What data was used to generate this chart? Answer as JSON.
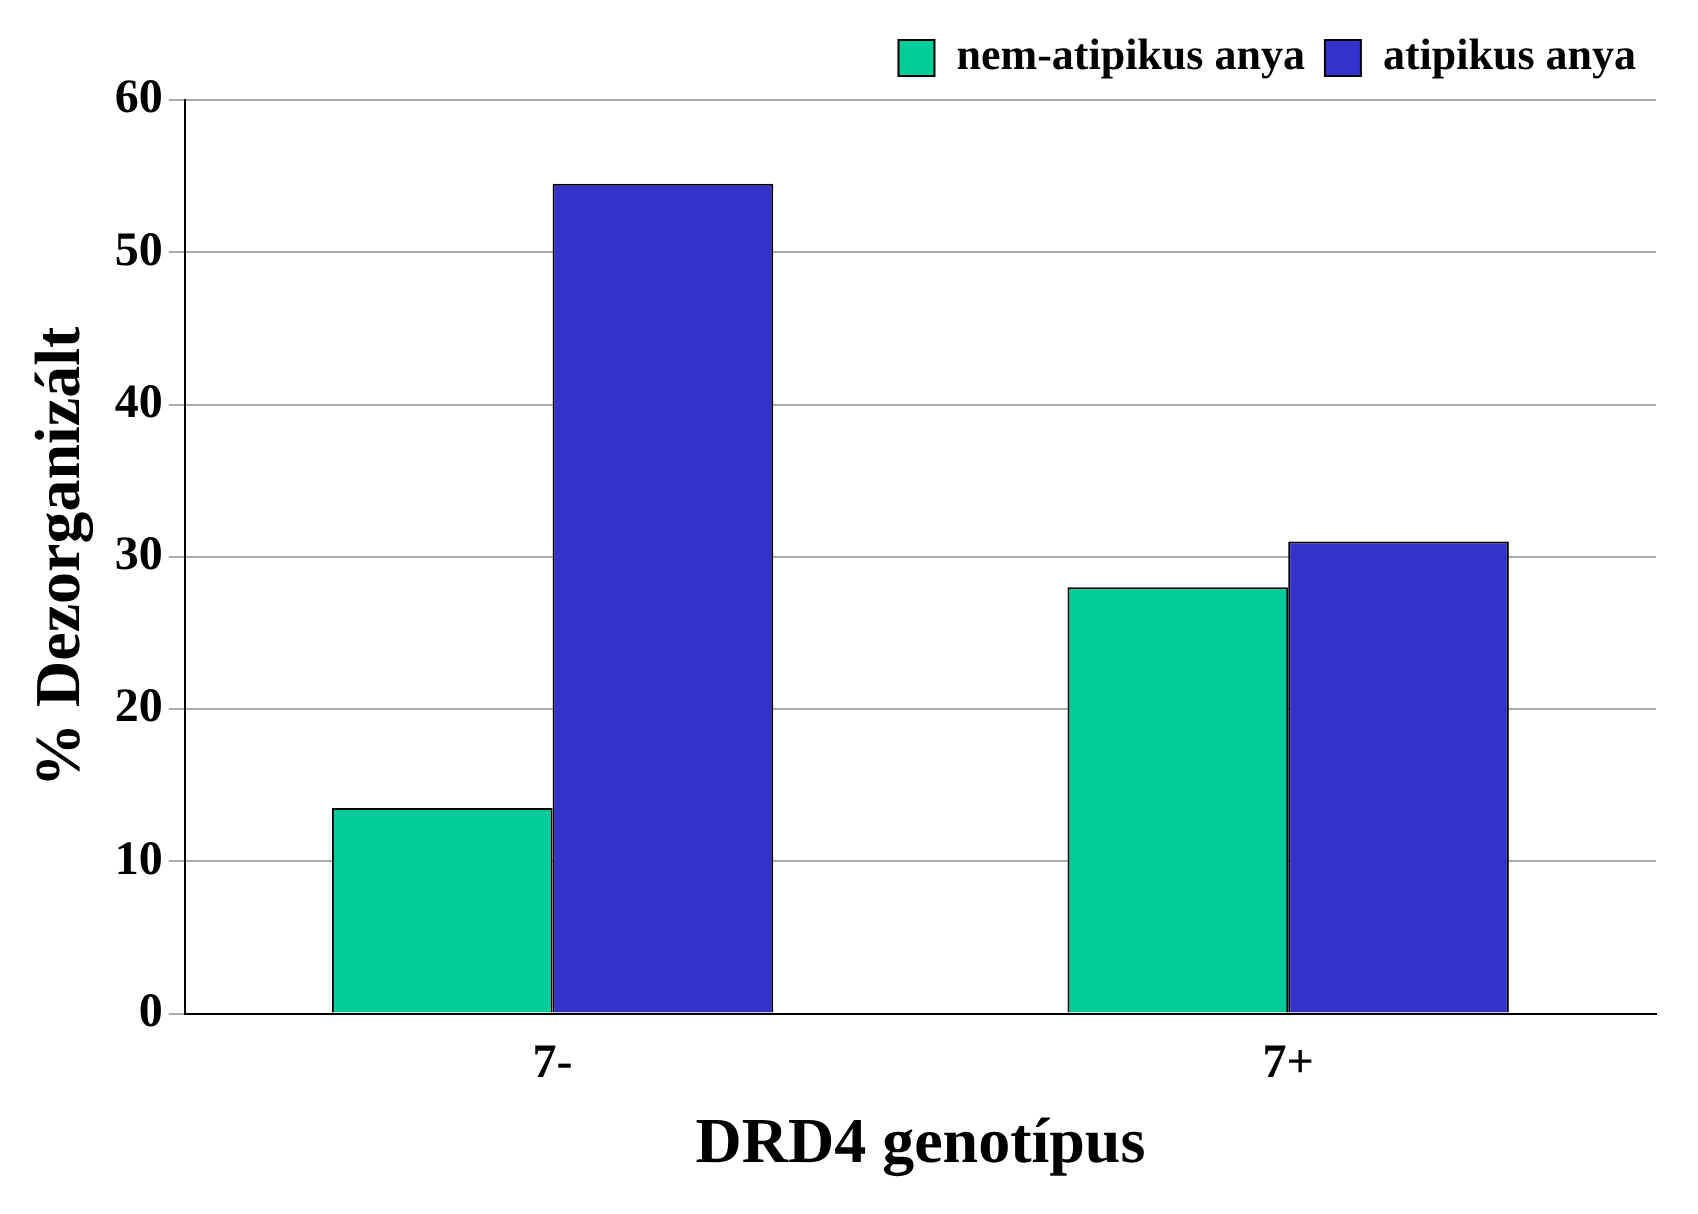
{
  "chart_data": {
    "type": "bar",
    "xlabel": "DRD4 genotípus",
    "ylabel": "% Dezorganizált",
    "categories": [
      "7-",
      "7+"
    ],
    "series": [
      {
        "name": "nem-atipikus anya",
        "color": "#00cc99",
        "values": [
          13.5,
          28
        ]
      },
      {
        "name": "atipikus anya",
        "color": "#3333cc",
        "values": [
          54.5,
          31
        ]
      }
    ],
    "ylim": [
      0,
      60
    ],
    "yticks": [
      0,
      10,
      20,
      30,
      40,
      50,
      60
    ],
    "grid": "y",
    "legend": "top right"
  }
}
